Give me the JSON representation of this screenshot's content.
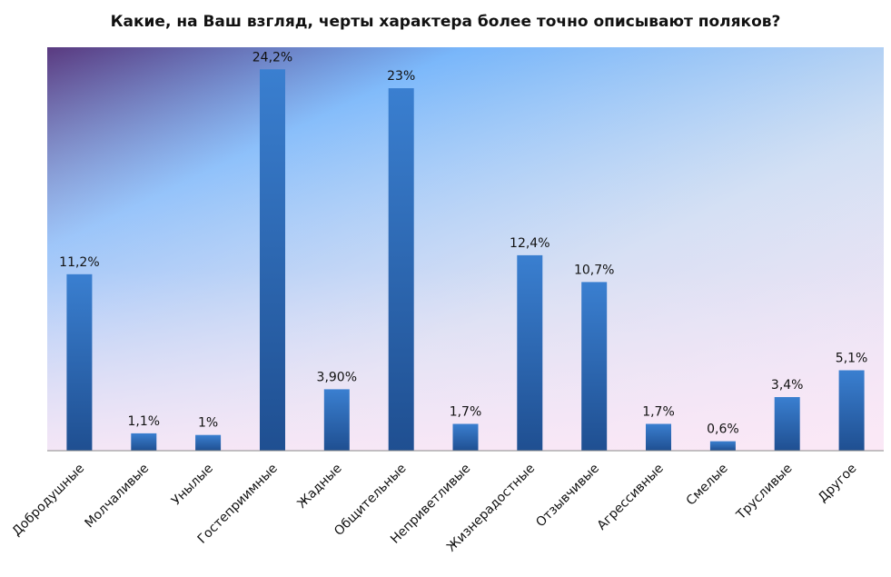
{
  "chart_data": {
    "type": "bar",
    "title": "Какие, на Ваш взгляд, черты характера более точно описывают поляков?",
    "categories": [
      "Добродушные",
      "Молчаливые",
      "Унылые",
      "Гостеприимные",
      "Жадные",
      "Общительные",
      "Неприветливые",
      "Жизнерадостные",
      "Отзывчивые",
      "Агрессивные",
      "Смелые",
      "Трусливые",
      "Другое"
    ],
    "values": [
      11.2,
      1.1,
      1.0,
      24.2,
      3.9,
      23.0,
      1.7,
      12.4,
      10.7,
      1.7,
      0.6,
      3.4,
      5.1
    ],
    "value_labels": [
      "11,2%",
      "1,1%",
      "1%",
      "24,2%",
      "3,90%",
      "23%",
      "1,7%",
      "12,4%",
      "10,7%",
      "1,7%",
      "0,6%",
      "3,4%",
      "5,1%"
    ],
    "xlabel": "",
    "ylabel": "",
    "ylim": [
      0,
      25.6
    ],
    "grid": false,
    "colors": {
      "bar_top": "#3a7fd0",
      "bar_bottom": "#1f4f91"
    }
  }
}
